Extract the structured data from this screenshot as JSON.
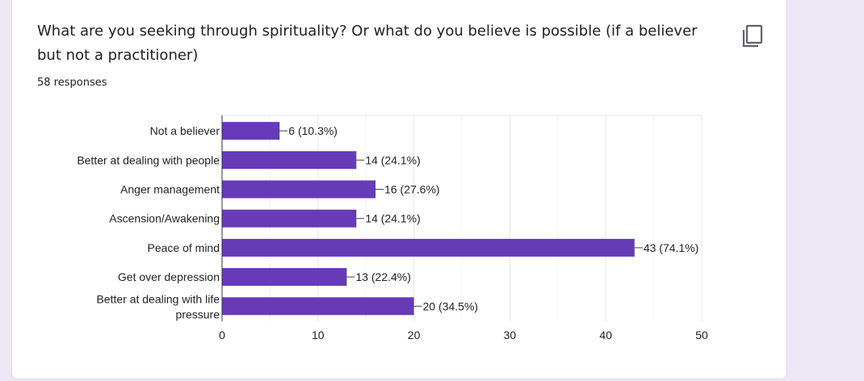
{
  "question": {
    "title": "What are you seeking through spirituality? Or what do you believe is possible (if a believer but not a practitioner)",
    "responses": "58 responses"
  },
  "copy_icon": "copy-icon",
  "colors": {
    "bar": "#673ab7",
    "background": "#ede7f6"
  },
  "chart_data": {
    "type": "bar",
    "orientation": "horizontal",
    "categories": [
      "Not a believer",
      "Better at dealing with people",
      "Anger management",
      "Ascension/Awakening",
      "Peace of mind",
      "Get over depression",
      "Better at dealing with life pressure"
    ],
    "values": [
      6,
      14,
      16,
      14,
      43,
      13,
      20
    ],
    "data_labels": [
      "6 (10.3%)",
      "14 (24.1%)",
      "16 (27.6%)",
      "14 (24.1%)",
      "43 (74.1%)",
      "13 (22.4%)",
      "20 (34.5%)"
    ],
    "xlim": [
      0,
      50
    ],
    "xticks": [
      0,
      10,
      20,
      30,
      40,
      50
    ],
    "grid": true,
    "legend": "none"
  }
}
